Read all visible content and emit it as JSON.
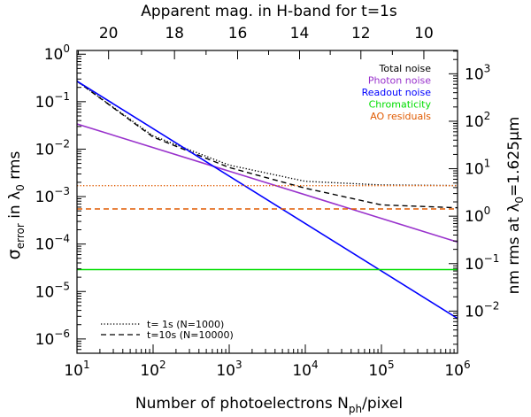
{
  "chart_data": {
    "type": "line",
    "title": "Apparent mag. in H-band for t=1s",
    "xlabel_main": "Number of photoelectrons N",
    "xlabel_sub": "ph",
    "xlabel_tail": "/pixel",
    "ylabel_sigma": "σ",
    "ylabel_sub": "error",
    "ylabel_mid": " in λ",
    "ylabel_sub2": "0",
    "ylabel_tail": " rms",
    "y2label_main": "nm rms at λ",
    "y2label_sub": "0",
    "y2label_tail": "=1.625μm",
    "x_scale": "log",
    "y_scale": "log",
    "xlim": [
      10,
      1000000
    ],
    "ylim": [
      5e-07,
      1.2
    ],
    "x_ticks": [
      {
        "value": 10,
        "base": "10",
        "exp": "1"
      },
      {
        "value": 100,
        "base": "10",
        "exp": "2"
      },
      {
        "value": 1000,
        "base": "10",
        "exp": "3"
      },
      {
        "value": 10000,
        "base": "10",
        "exp": "4"
      },
      {
        "value": 100000,
        "base": "10",
        "exp": "5"
      },
      {
        "value": 1000000,
        "base": "10",
        "exp": "6"
      }
    ],
    "y_ticks": [
      {
        "value": 1,
        "base": "10",
        "exp": "0"
      },
      {
        "value": 0.1,
        "base": "10",
        "exp": "−1"
      },
      {
        "value": 0.01,
        "base": "10",
        "exp": "−2"
      },
      {
        "value": 0.001,
        "base": "10",
        "exp": "−3"
      },
      {
        "value": 0.0001,
        "base": "10",
        "exp": "−4"
      },
      {
        "value": 1e-05,
        "base": "10",
        "exp": "−5"
      },
      {
        "value": 1e-06,
        "base": "10",
        "exp": "−6"
      }
    ],
    "y2_ticks": [
      {
        "value": 0.3869,
        "base": "10",
        "exp": "3"
      },
      {
        "value": 0.03869,
        "base": "10",
        "exp": "2"
      },
      {
        "value": 0.003869,
        "base": "10",
        "exp": "1"
      },
      {
        "value": 0.0003869,
        "base": "10",
        "exp": "0"
      },
      {
        "value": 3.869e-05,
        "base": "10",
        "exp": "−1"
      },
      {
        "value": 3.869e-06,
        "base": "10",
        "exp": "−2"
      }
    ],
    "top_ticks": [
      {
        "value": 26.0,
        "label": "20"
      },
      {
        "value": 191.0,
        "label": "18"
      },
      {
        "value": 1290.0,
        "label": "16"
      },
      {
        "value": 8400.0,
        "label": "14"
      },
      {
        "value": 53700.0,
        "label": "12"
      },
      {
        "value": 361000.0,
        "label": "10"
      }
    ],
    "series": [
      {
        "name": "Total noise",
        "color": "#000000",
        "style": "dotted",
        "x": [
          10,
          100,
          1000,
          10000,
          100000,
          1000000
        ],
        "y": [
          0.27,
          0.019,
          0.0046,
          0.0021,
          0.00176,
          0.00171
        ]
      },
      {
        "name": "Total noise",
        "color": "#000000",
        "style": "dashed",
        "x": [
          10,
          100,
          1000,
          10000,
          100000,
          1000000
        ],
        "y": [
          0.27,
          0.018,
          0.0041,
          0.0015,
          0.00067,
          0.00058
        ]
      },
      {
        "name": "Photon noise",
        "color": "#9932cc",
        "style": "solid",
        "x": [
          10,
          1000000
        ],
        "y": [
          0.034,
          0.00011
        ]
      },
      {
        "name": "Readout noise",
        "color": "#0000ff",
        "style": "solid",
        "x": [
          10,
          1000000
        ],
        "y": [
          0.27,
          2.7e-06
        ]
      },
      {
        "name": "Chromaticity",
        "color": "#00dd00",
        "style": "solid",
        "x": [
          10,
          1000000
        ],
        "y": [
          2.9e-05,
          2.9e-05
        ]
      },
      {
        "name": "AO residuals",
        "color": "#e05a00",
        "style": "dotted",
        "x": [
          10,
          1000000
        ],
        "y": [
          0.0017,
          0.0017
        ]
      },
      {
        "name": "AO residuals",
        "color": "#e05a00",
        "style": "dashed",
        "x": [
          10,
          1000000
        ],
        "y": [
          0.00055,
          0.00055
        ]
      }
    ],
    "legend_colors": [
      {
        "label": "Total noise",
        "color": "#000000"
      },
      {
        "label": "Photon noise",
        "color": "#9932cc"
      },
      {
        "label": "Readout noise",
        "color": "#0000ff"
      },
      {
        "label": "Chromaticity",
        "color": "#00dd00"
      },
      {
        "label": "AO residuals",
        "color": "#e05a00"
      }
    ],
    "legend_styles": [
      {
        "label": "t= 1s (N=1000)",
        "style": "dotted"
      },
      {
        "label": "t=10s (N=10000)",
        "style": "dashed"
      }
    ],
    "legend_position": "top-right",
    "style_legend_position": "bottom-left"
  }
}
